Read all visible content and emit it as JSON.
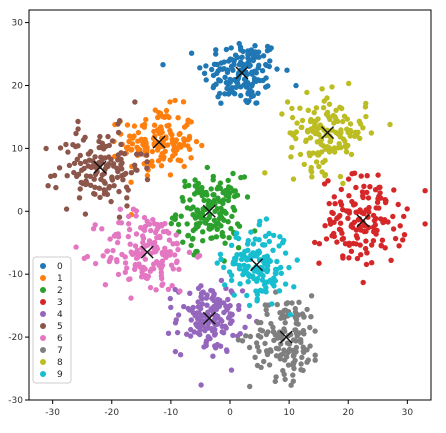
{
  "chart_data": {
    "type": "scatter",
    "title": "",
    "xlabel": "",
    "ylabel": "",
    "xlim": [
      -34,
      34
    ],
    "ylim": [
      -30,
      32
    ],
    "xticks": [
      -30,
      -20,
      -10,
      0,
      10,
      20,
      30
    ],
    "yticks": [
      -30,
      -20,
      -10,
      0,
      10,
      20,
      30
    ],
    "grid": false,
    "legend_position": "lower-left",
    "series": [
      {
        "name": "0",
        "color": "#1f77b4",
        "center": [
          2,
          22
        ],
        "spread": [
          6,
          5
        ],
        "count": 150
      },
      {
        "name": "1",
        "color": "#ff7f0e",
        "center": [
          -12,
          11
        ],
        "spread": [
          5.5,
          5
        ],
        "count": 150
      },
      {
        "name": "2",
        "color": "#2ca02c",
        "center": [
          -3.5,
          0
        ],
        "spread": [
          5,
          5
        ],
        "count": 160
      },
      {
        "name": "3",
        "color": "#d62728",
        "center": [
          22.5,
          -1.5
        ],
        "spread": [
          6.5,
          6.5
        ],
        "count": 150
      },
      {
        "name": "4",
        "color": "#9467bd",
        "center": [
          -3.5,
          -17
        ],
        "spread": [
          5,
          5
        ],
        "count": 150
      },
      {
        "name": "5",
        "color": "#8c564b",
        "center": [
          -22,
          7
        ],
        "spread": [
          6.5,
          5.5
        ],
        "count": 140
      },
      {
        "name": "6",
        "color": "#e377c2",
        "center": [
          -14,
          -6.5
        ],
        "spread": [
          7,
          6
        ],
        "count": 160
      },
      {
        "name": "7",
        "color": "#7f7f7f",
        "center": [
          9.5,
          -20
        ],
        "spread": [
          5.5,
          6
        ],
        "count": 140
      },
      {
        "name": "8",
        "color": "#bcbd22",
        "center": [
          16.5,
          12.5
        ],
        "spread": [
          6,
          5.5
        ],
        "count": 150
      },
      {
        "name": "9",
        "color": "#17becf",
        "center": [
          4.5,
          -8.5
        ],
        "spread": [
          5,
          5
        ],
        "count": 150
      }
    ],
    "centroids": [
      {
        "series": "0",
        "x": 2,
        "y": 22
      },
      {
        "series": "1",
        "x": -12,
        "y": 11
      },
      {
        "series": "2",
        "x": -3.5,
        "y": 0
      },
      {
        "series": "3",
        "x": 22.5,
        "y": -1.5
      },
      {
        "series": "4",
        "x": -3.5,
        "y": -17
      },
      {
        "series": "5",
        "x": -22,
        "y": 7
      },
      {
        "series": "6",
        "x": -14,
        "y": -6.5
      },
      {
        "series": "7",
        "x": 9.5,
        "y": -20
      },
      {
        "series": "8",
        "x": 16.5,
        "y": 12.5
      },
      {
        "series": "9",
        "x": 4.5,
        "y": -8.5
      }
    ]
  }
}
